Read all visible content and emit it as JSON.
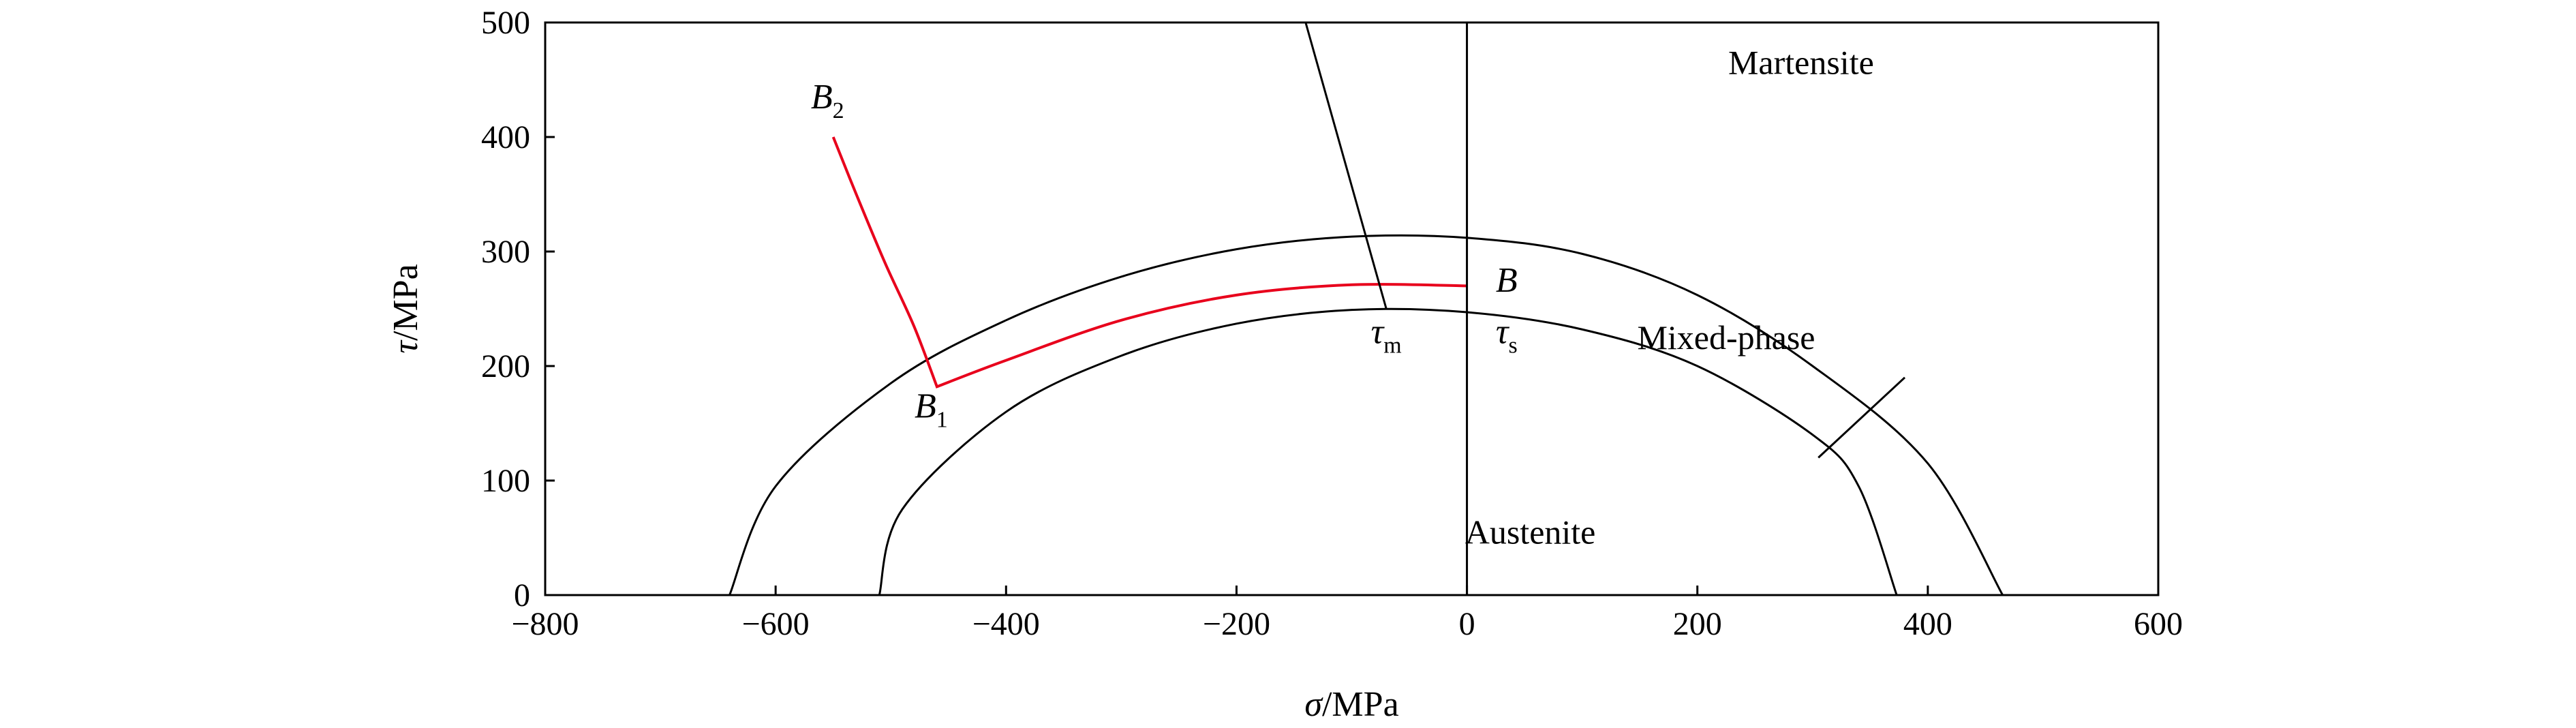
{
  "chart_data": {
    "type": "line",
    "title": "",
    "xlabel_symbol": "σ",
    "xlabel_unit": "/MPa",
    "ylabel_symbol": "τ",
    "ylabel_unit": "/MPa",
    "xlim": [
      -800,
      600
    ],
    "ylim": [
      0,
      500
    ],
    "xticks": [
      -800,
      -600,
      -400,
      -200,
      0,
      200,
      400,
      600
    ],
    "yticks": [
      0,
      100,
      200,
      300,
      400,
      500
    ],
    "xtick_labels": [
      "−800",
      "−600",
      "−400",
      "−200",
      "0",
      "200",
      "400",
      "600"
    ],
    "ytick_labels": [
      "0",
      "100",
      "200",
      "300",
      "400",
      "500"
    ],
    "grid": false,
    "series": [
      {
        "role": "outer_boundary",
        "color": "#000000",
        "points": [
          [
            -640,
            0
          ],
          [
            -600,
            95
          ],
          [
            -500,
            185
          ],
          [
            -400,
            240
          ],
          [
            -300,
            278
          ],
          [
            -200,
            302
          ],
          [
            -100,
            313
          ],
          [
            0,
            312
          ],
          [
            100,
            298
          ],
          [
            200,
            262
          ],
          [
            300,
            200
          ],
          [
            400,
            115
          ],
          [
            465,
            0
          ]
        ]
      },
      {
        "role": "inner_boundary",
        "color": "#000000",
        "points": [
          [
            -510,
            0
          ],
          [
            -490,
            75
          ],
          [
            -400,
            160
          ],
          [
            -300,
            209
          ],
          [
            -200,
            237
          ],
          [
            -100,
            249
          ],
          [
            0,
            247
          ],
          [
            100,
            232
          ],
          [
            200,
            200
          ],
          [
            300,
            140
          ],
          [
            340,
            95
          ],
          [
            373,
            0
          ]
        ]
      },
      {
        "role": "loading_path",
        "color": "#e8001c",
        "points": [
          [
            -550,
            400
          ],
          [
            -530,
            350
          ],
          [
            -505,
            290
          ],
          [
            -480,
            235
          ],
          [
            -460,
            182
          ],
          [
            -400,
            205
          ],
          [
            -300,
            240
          ],
          [
            -200,
            262
          ],
          [
            -100,
            271
          ],
          [
            0,
            270
          ]
        ]
      },
      {
        "role": "divider_vertical",
        "color": "#000000",
        "points": [
          [
            0,
            0
          ],
          [
            0,
            500
          ]
        ]
      },
      {
        "role": "divider_tau_m",
        "color": "#000000",
        "points": [
          [
            -140,
            500
          ],
          [
            -70,
            250
          ]
        ]
      }
    ],
    "annotations": {
      "B2": {
        "main": "B",
        "sub": "2",
        "x": -555,
        "y": 425
      },
      "B1": {
        "main": "B",
        "sub": "1",
        "x": -465,
        "y": 155
      },
      "B": {
        "main": "B",
        "sub": "",
        "x": 25,
        "y": 265
      },
      "tau_m": {
        "main": "τ",
        "sub": "m",
        "x": -70,
        "y": 220
      },
      "tau_s": {
        "main": "τ",
        "sub": "s",
        "x": 25,
        "y": 220
      },
      "martensite": {
        "text": "Martensite",
        "x": 290,
        "y": 455
      },
      "mixed_phase": {
        "text": "Mixed-phase",
        "x": 225,
        "y": 215
      },
      "austenite": {
        "text": "Austenite",
        "x": 55,
        "y": 45
      }
    },
    "leader": {
      "from": [
        380,
        190
      ],
      "to": [
        305,
        120
      ]
    }
  }
}
